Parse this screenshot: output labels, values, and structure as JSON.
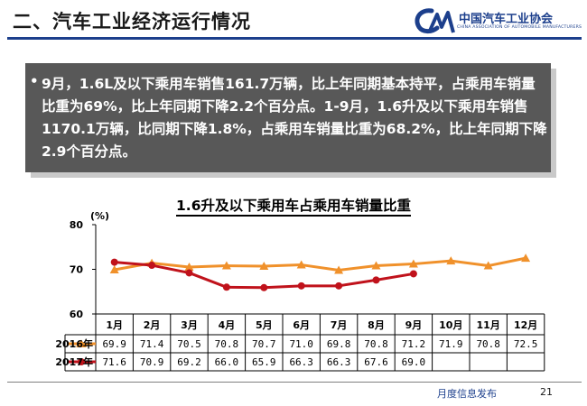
{
  "slide": {
    "title": "二、汽车工业经济运行情况",
    "logo_name": "中国汽车工业协会",
    "logo_subtitle": "CHINA ASSOCIATION OF AUTOMOBILE MANUFACTURERS",
    "bullet": "•",
    "summary": "9月，1.6L及以下乘用车销售161.7万辆，比上年同期基本持平，占乘用车销量比重为69%，比上年同期下降2.2个百分点。1-9月，1.6升及以下乘用车销售1170.1万辆，比同期下降1.8%，占乘用车销量比重为68.2%，比上年同期下降2.9个百分点。",
    "footer_label": "月度信息发布",
    "page_number": "21"
  },
  "colors": {
    "accent": "#1c3f8c",
    "series_2016": "#f0912b",
    "series_2017": "#c0121b"
  },
  "chart_data": {
    "type": "line",
    "title": "1.6升及以下乘用车占乘用车销量比重",
    "ylabel": "(%)",
    "ylim": [
      60,
      80
    ],
    "yticks": [
      60,
      70,
      80
    ],
    "categories": [
      "1月",
      "2月",
      "3月",
      "4月",
      "5月",
      "6月",
      "7月",
      "8月",
      "9月",
      "10月",
      "11月",
      "12月"
    ],
    "series": [
      {
        "name": "2016年",
        "values": [
          69.9,
          71.4,
          70.5,
          70.8,
          70.7,
          71.0,
          69.8,
          70.8,
          71.2,
          71.9,
          70.8,
          72.5
        ]
      },
      {
        "name": "2017年",
        "values": [
          71.6,
          70.9,
          69.2,
          66.0,
          65.9,
          66.3,
          66.3,
          67.6,
          69.0,
          null,
          null,
          null
        ]
      }
    ],
    "value_labels": [
      [
        "69.9",
        "71.4",
        "70.5",
        "70.8",
        "70.7",
        "71.0",
        "69.8",
        "70.8",
        "71.2",
        "71.9",
        "70.8",
        "72.5"
      ],
      [
        "71.6",
        "70.9",
        "69.2",
        "66.0",
        "65.9",
        "66.3",
        "66.3",
        "67.6",
        "69.0",
        "",
        "",
        ""
      ]
    ]
  }
}
